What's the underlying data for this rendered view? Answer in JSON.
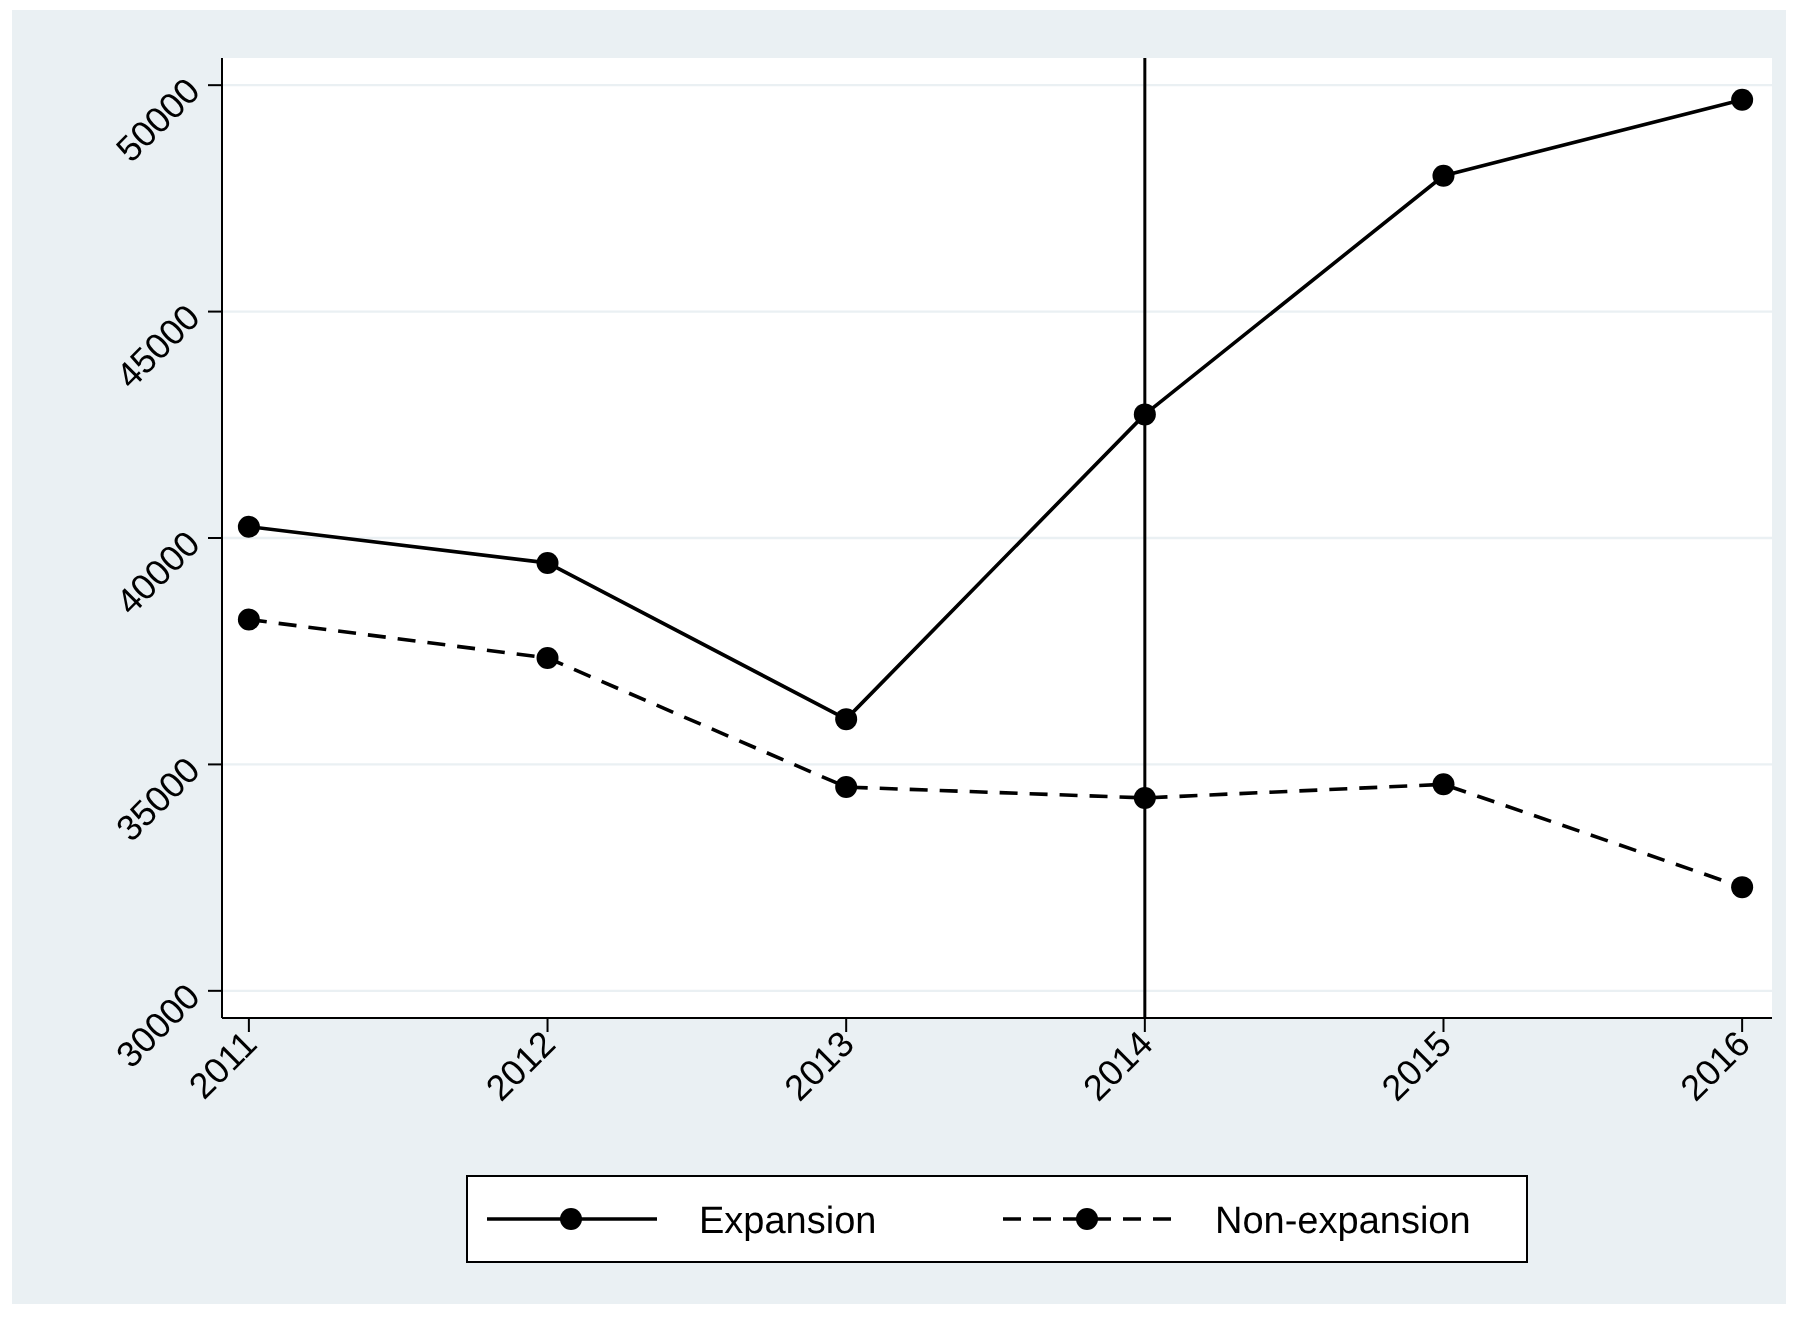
{
  "chart_data": {
    "type": "line",
    "x": [
      2011,
      2012,
      2013,
      2014,
      2015,
      2016
    ],
    "series": [
      {
        "name": "Expansion",
        "color": "#000000",
        "line_style": "solid",
        "values": [
          40250,
          39450,
          36000,
          42730,
          48000,
          49680
        ]
      },
      {
        "name": "Non-expansion",
        "color": "#000000",
        "line_style": "dashed",
        "values": [
          38200,
          37350,
          34500,
          34260,
          34560,
          32290
        ]
      }
    ],
    "xlim": [
      2010.91,
      2016.1
    ],
    "xticks": [
      2011,
      2012,
      2013,
      2014,
      2015,
      2016
    ],
    "ylim": [
      29400,
      50600
    ],
    "yticks": [
      30000,
      35000,
      40000,
      45000,
      50000
    ],
    "grid": "y",
    "marker": "circle",
    "legend": "bottom",
    "ref_lines": [
      {
        "axis": "x",
        "value": 2014,
        "color": "#000000"
      }
    ]
  }
}
